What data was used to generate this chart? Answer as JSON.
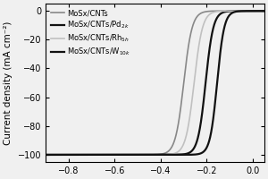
{
  "title": "",
  "xlabel": "",
  "ylabel": "Current density (mA cm⁻²)",
  "xlim": [
    -0.9,
    0.05
  ],
  "ylim": [
    -105,
    5
  ],
  "xticks": [
    -0.8,
    -0.6,
    -0.4,
    -0.2,
    0.0
  ],
  "yticks": [
    -100,
    -80,
    -60,
    -40,
    -20,
    0
  ],
  "series": [
    {
      "label": "MoSx/CNTs",
      "color": "#888888",
      "lw": 1.2,
      "onset": -0.3,
      "steepness": 55
    },
    {
      "label": "MoSx/CNTs/Pd$_{2k}$",
      "color": "#111111",
      "lw": 1.6,
      "onset": -0.205,
      "steepness": 60
    },
    {
      "label": "MoSx/CNTs/Rh$_{5h}$",
      "color": "#c0c0c0",
      "lw": 1.2,
      "onset": -0.255,
      "steepness": 55
    },
    {
      "label": "MoSx/CNTs/W$_{10k}$",
      "color": "#111111",
      "lw": 1.6,
      "onset": -0.155,
      "steepness": 65
    }
  ],
  "background_color": "#f0f0f0",
  "legend_fontsize": 6.0,
  "tick_fontsize": 7,
  "label_fontsize": 7.5
}
